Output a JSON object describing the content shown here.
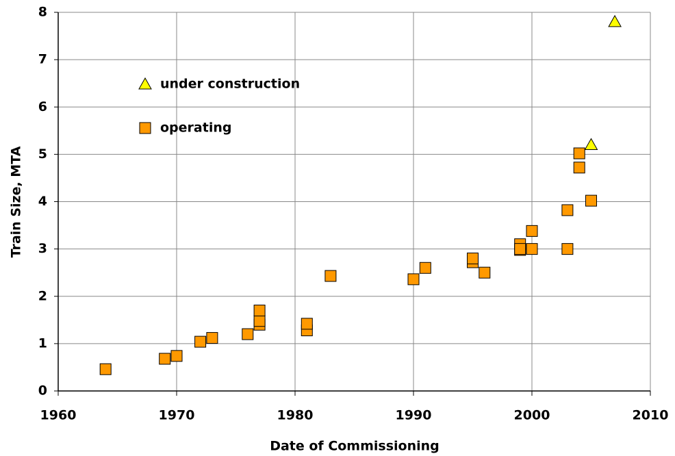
{
  "chart_data": {
    "type": "scatter",
    "x_label": "Date of Commissioning",
    "y_label": "Train Size, MTA",
    "xlim": [
      1960,
      2010
    ],
    "xticks": [
      1960,
      1970,
      1980,
      1990,
      2000,
      2010
    ],
    "ylim": [
      0,
      8
    ],
    "yticks": [
      0,
      1,
      2,
      3,
      4,
      5,
      6,
      7,
      8
    ],
    "grid": true,
    "legend": "upper left",
    "series": [
      {
        "name": "under construction",
        "color": "#ffff00",
        "marker": "triangle",
        "x": [
          2005,
          2007
        ],
        "values": [
          5.2,
          7.8
        ]
      },
      {
        "name": "operating",
        "color": "#ff9900",
        "marker": "square",
        "x": [
          1964,
          1969,
          1970,
          1972,
          1973,
          1976,
          1977,
          1977,
          1977,
          1981,
          1981,
          1983,
          1990,
          1991,
          1995,
          1995,
          1996,
          1999,
          1999,
          1999,
          2000,
          2000,
          2003,
          2003,
          2004,
          2004,
          2005
        ],
        "values": [
          0.46,
          0.68,
          0.74,
          1.04,
          1.12,
          1.2,
          1.4,
          1.48,
          1.7,
          1.28,
          1.42,
          2.43,
          2.36,
          2.6,
          2.72,
          2.8,
          2.5,
          2.98,
          3.1,
          3.0,
          3.0,
          3.38,
          3.0,
          3.82,
          4.72,
          5.02,
          4.02
        ]
      }
    ]
  }
}
